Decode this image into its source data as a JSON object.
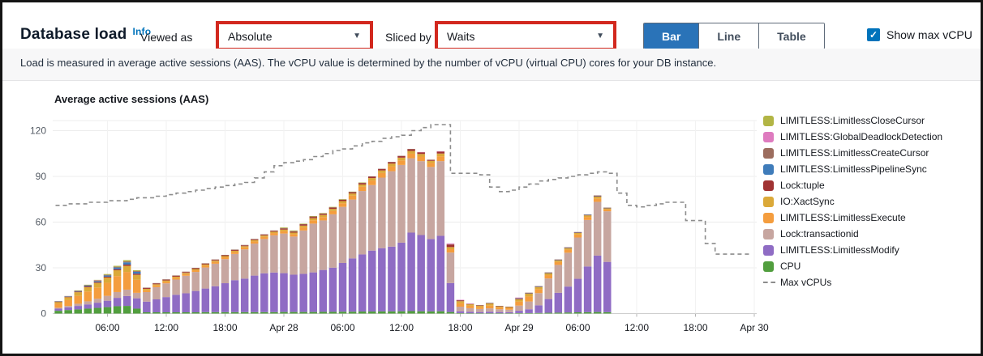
{
  "colors": {
    "annotation_red": "#d2281e",
    "accent_blue": "#2a73b8",
    "check_blue": "#0073bb",
    "axis_text": "#545b64",
    "tick_text": "#16191f",
    "max_line": "#8c8c8c"
  },
  "header": {
    "title": "Database load",
    "info_link": "Info",
    "viewed_as_label": "Viewed as",
    "viewed_as_value": "Absolute",
    "sliced_by_label": "Sliced by",
    "sliced_by_value": "Waits",
    "caret": "▼",
    "view_toggle": {
      "options": [
        "Bar",
        "Line",
        "Table"
      ],
      "selected": "Bar"
    },
    "checkbox": {
      "label": "Show max vCPU",
      "checked": true,
      "check_glyph": "✓"
    }
  },
  "subtitle": "Load is measured in average active sessions (AAS). The vCPU value is determined by the number of vCPU (virtual CPU) cores for your DB instance.",
  "chart_data": {
    "type": "bar",
    "stacked": true,
    "title": "Average active sessions (AAS)",
    "ylabel": "",
    "xlabel": "",
    "ylim": [
      0,
      125.3
    ],
    "y_ticks": [
      0,
      30,
      60,
      90,
      120
    ],
    "x_ticks": [
      {
        "h": 6,
        "label": "06:00"
      },
      {
        "h": 12,
        "label": "12:00"
      },
      {
        "h": 18,
        "label": "18:00"
      },
      {
        "h": 24,
        "label": "Apr 28"
      },
      {
        "h": 30,
        "label": "06:00"
      },
      {
        "h": 36,
        "label": "12:00"
      },
      {
        "h": 42,
        "label": "18:00"
      },
      {
        "h": 48,
        "label": "Apr 29"
      },
      {
        "h": 54,
        "label": "06:00"
      },
      {
        "h": 60,
        "label": "12:00"
      },
      {
        "h": 66,
        "label": "18:00"
      },
      {
        "h": 72,
        "label": "Apr 30"
      }
    ],
    "bars_start_hour": 1,
    "bars_interval_hours": 1,
    "series": [
      {
        "name": "CPU",
        "color": "#519e3e",
        "values": [
          1.8,
          2.3,
          2.7,
          3.2,
          3.7,
          4.2,
          4.8,
          5.0,
          3.2,
          0.8,
          0.8,
          0.8,
          0.8,
          0.8,
          0.8,
          0.9,
          0.9,
          0.9,
          0.9,
          0.9,
          0.9,
          0.9,
          0.9,
          1.0,
          1.0,
          1.0,
          1.0,
          1.1,
          1.1,
          1.2,
          1.2,
          1.3,
          1.3,
          1.4,
          1.4,
          1.5,
          1.6,
          1.5,
          1.4,
          1.5,
          1.0,
          0.3,
          0.2,
          0.2,
          0.2,
          0.2,
          0.2,
          0.3,
          0.3,
          0.4,
          0.5,
          0.6,
          0.7,
          0.8,
          0.9,
          1.0,
          0.9
        ]
      },
      {
        "name": "LIMITLESS:LimitlessModify",
        "color": "#8f6cc4",
        "values": [
          1.4,
          1.8,
          2.3,
          2.8,
          3.4,
          4.2,
          5.5,
          6.5,
          6.8,
          7.0,
          8.5,
          10.0,
          11.5,
          12.5,
          14.0,
          15.5,
          17.0,
          19.0,
          21.0,
          22.0,
          24.0,
          25.5,
          26.0,
          25.5,
          24.5,
          25.0,
          26.0,
          27.5,
          29.0,
          32.0,
          35.0,
          37.5,
          40.0,
          41.5,
          42.5,
          45.0,
          51.5,
          50.0,
          47.5,
          49.5,
          19.0,
          1.2,
          1.0,
          0.8,
          1.0,
          0.8,
          0.7,
          1.5,
          2.5,
          5.0,
          9.0,
          13.0,
          17.0,
          22.0,
          30.0,
          37.0,
          33.0
        ]
      },
      {
        "name": "Lock:transactionid",
        "color": "#c7a6a0",
        "values": [
          0.6,
          0.9,
          1.4,
          2.0,
          2.6,
          3.2,
          3.8,
          4.2,
          3.6,
          6.3,
          8.0,
          9.0,
          10.0,
          11.5,
          12.5,
          13.8,
          14.8,
          15.8,
          17.2,
          19.2,
          21.0,
          22.5,
          24.4,
          26.0,
          25.0,
          28.5,
          32.0,
          32.5,
          35.0,
          36.8,
          38.6,
          41.6,
          43.0,
          46.3,
          49.5,
          51.0,
          48.8,
          48.5,
          47.3,
          49.0,
          20.0,
          3.0,
          2.3,
          2.0,
          2.2,
          1.8,
          1.6,
          3.4,
          5.1,
          8.0,
          13.5,
          18.3,
          22.2,
          27.1,
          30.5,
          35.3,
          33.2
        ]
      },
      {
        "name": "LIMITLESS:LimitlessExecute",
        "color": "#f49d3e",
        "values": [
          2.6,
          3.8,
          5.2,
          6.5,
          7.4,
          8.6,
          10.5,
          11.6,
          8.5,
          1.2,
          1.1,
          1.1,
          1.1,
          1.1,
          1.1,
          1.2,
          1.2,
          1.2,
          1.3,
          1.3,
          1.4,
          1.4,
          1.5,
          1.6,
          1.6,
          2.0,
          2.2,
          2.2,
          2.2,
          2.4,
          2.6,
          2.8,
          3.0,
          3.0,
          3.2,
          3.0,
          3.0,
          3.0,
          2.6,
          3.2,
          2.2,
          2.2,
          1.6,
          1.4,
          1.8,
          1.3,
          1.2,
          2.6,
          3.3,
          2.6,
          2.2,
          2.0,
          2.0,
          2.0,
          2.0,
          2.2,
          1.2
        ]
      },
      {
        "name": "IO:XactSync",
        "color": "#dba939",
        "values": [
          1.2,
          1.9,
          2.4,
          2.8,
          3.0,
          3.4,
          3.8,
          4.0,
          3.3,
          0.9,
          0.8,
          0.8,
          0.8,
          0.8,
          0.8,
          0.8,
          0.8,
          0.8,
          0.8,
          0.8,
          0.9,
          0.9,
          0.9,
          1.0,
          1.0,
          1.2,
          1.4,
          1.4,
          1.4,
          1.4,
          1.4,
          1.5,
          1.6,
          1.7,
          1.8,
          1.8,
          1.8,
          1.7,
          1.4,
          1.8,
          1.4,
          1.4,
          1.0,
          0.8,
          1.4,
          0.7,
          0.6,
          1.5,
          1.9,
          1.4,
          1.2,
          1.0,
          1.0,
          1.0,
          1.0,
          1.2,
          0.7
        ]
      },
      {
        "name": "Lock:tuple",
        "color": "#a03232",
        "values": [
          0.2,
          0.3,
          0.4,
          0.5,
          0.5,
          0.6,
          0.7,
          0.8,
          0.7,
          0.5,
          0.5,
          0.5,
          0.5,
          0.5,
          0.5,
          0.5,
          0.5,
          0.5,
          0.5,
          0.5,
          0.5,
          0.5,
          0.5,
          0.6,
          0.6,
          0.7,
          0.8,
          0.7,
          0.8,
          0.8,
          0.8,
          0.9,
          0.9,
          0.9,
          0.9,
          1.0,
          1.1,
          1.0,
          0.6,
          1.2,
          1.6,
          0.5,
          0.2,
          0.2,
          0.2,
          0.1,
          0.1,
          0.4,
          0.3,
          0.3,
          0.3,
          0.3,
          0.3,
          0.3,
          0.3,
          0.4,
          0.3
        ]
      },
      {
        "name": "LIMITLESS:LimitlessPipelineSync",
        "color": "#3f7cba",
        "values": [
          0.2,
          0.3,
          0.4,
          0.5,
          0.6,
          0.8,
          1.1,
          1.5,
          1.3,
          0,
          0,
          0,
          0,
          0,
          0,
          0,
          0,
          0,
          0,
          0,
          0,
          0,
          0,
          0,
          0,
          0,
          0,
          0,
          0,
          0,
          0,
          0,
          0,
          0,
          0,
          0,
          0,
          0,
          0,
          0,
          0,
          0,
          0,
          0,
          0.1,
          0,
          0,
          0.2,
          0.1,
          0.1,
          0.1,
          0.1,
          0.1,
          0.1,
          0.1,
          0.1,
          0.1
        ]
      },
      {
        "name": "LIMITLESS:LimitlessCreateCursor",
        "color": "#9c6d5e",
        "values": [
          0.1,
          0.2,
          0.2,
          0.3,
          0.4,
          0.4,
          0.5,
          0.6,
          0.5,
          0.3,
          0.3,
          0.3,
          0.3,
          0.3,
          0.3,
          0.3,
          0.3,
          0.3,
          0.3,
          0.3,
          0.3,
          0.3,
          0.3,
          0.4,
          0.4,
          0.3,
          0.3,
          0.3,
          0.3,
          0.3,
          0.3,
          0.3,
          0.2,
          0.2,
          0.2,
          0.2,
          0.2,
          0.2,
          0.2,
          0.2,
          0.3,
          0.2,
          0.1,
          0.1,
          0.1,
          0.1,
          0.1,
          0.3,
          0.2,
          0.2,
          0.2,
          0.2,
          0.2,
          0.2,
          0.2,
          0.3,
          0.1
        ]
      },
      {
        "name": "LIMITLESS:GlobalDeadlockDetection",
        "color": "#de7bbf",
        "values": [
          0,
          0,
          0,
          0,
          0.2,
          0,
          0,
          0,
          0,
          0,
          0,
          0,
          0,
          0,
          0,
          0,
          0,
          0,
          0,
          0,
          0,
          0,
          0,
          0,
          0,
          0,
          0,
          0,
          0,
          0,
          0,
          0,
          0,
          0,
          0,
          0,
          0,
          0.1,
          0,
          0.1,
          0.5,
          0.2,
          0.1,
          0,
          0,
          0,
          0,
          0.3,
          0,
          0,
          0,
          0,
          0,
          0,
          0,
          0,
          0
        ]
      },
      {
        "name": "LIMITLESS:LimitlessCloseCursor",
        "color": "#b2b545",
        "values": [
          0,
          0,
          0.2,
          0.3,
          0.3,
          0.5,
          0.6,
          0.8,
          0.5,
          0,
          0,
          0,
          0,
          0,
          0,
          0,
          0,
          0,
          0,
          0,
          0,
          0,
          0,
          0.4,
          0.4,
          0.3,
          0.3,
          0.3,
          0.2,
          0.1,
          0.1,
          0.1,
          0,
          0,
          0,
          0,
          0,
          0,
          0,
          0,
          0,
          0,
          0,
          0,
          0,
          0,
          0,
          0,
          0,
          0,
          0,
          0,
          0,
          0,
          0,
          0,
          0
        ]
      }
    ],
    "max_vcpus": {
      "name": "Max vCPUs",
      "color": "#8c8c8c",
      "start_hour": 0,
      "hourly_values": [
        71,
        71,
        72,
        72,
        73,
        73,
        74,
        74,
        75,
        76,
        76,
        77,
        78,
        79,
        80,
        81,
        82,
        83,
        84,
        85,
        86,
        89,
        93,
        97,
        99,
        100,
        101,
        103,
        105,
        107,
        108,
        110,
        112,
        113,
        115,
        116,
        117,
        120,
        122,
        124,
        124,
        92,
        92,
        92,
        91,
        83,
        80,
        81,
        83,
        85,
        87,
        88,
        89,
        90,
        91,
        92,
        93,
        92,
        79,
        71,
        70,
        71,
        72,
        73,
        73,
        61,
        61,
        46,
        39,
        39,
        39,
        39
      ]
    },
    "legend_position": "right",
    "grid": true
  }
}
